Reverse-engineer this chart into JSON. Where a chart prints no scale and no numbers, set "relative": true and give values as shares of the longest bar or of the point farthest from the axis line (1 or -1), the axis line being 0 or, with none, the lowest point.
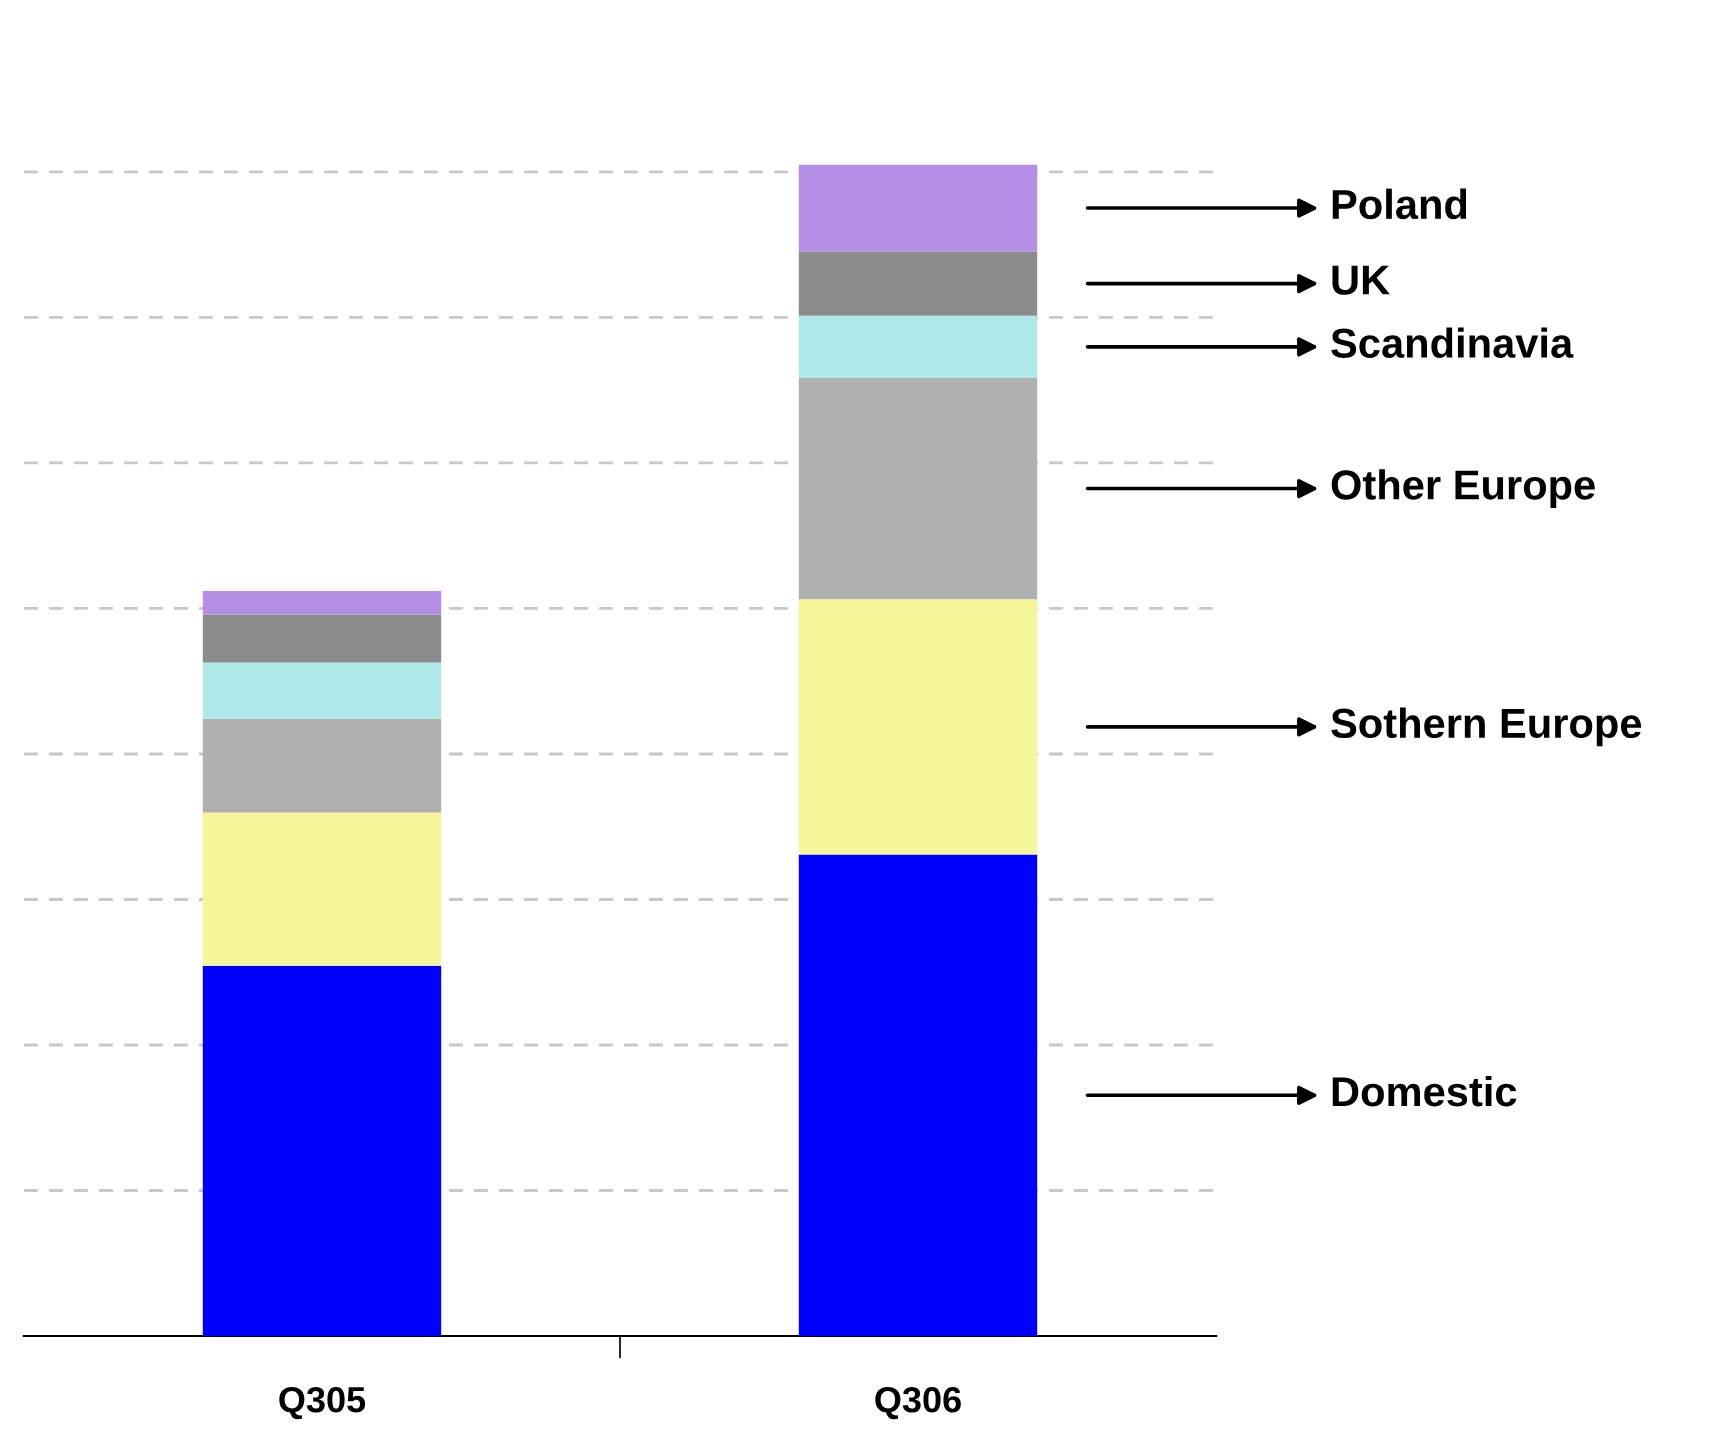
{
  "chart_data": {
    "type": "bar",
    "stacked": true,
    "relative": true,
    "grid": "y",
    "legend": false,
    "categories": [
      "Q305",
      "Q306"
    ],
    "series": [
      {
        "name": "Domestic",
        "color": "#0000ff",
        "values": [
          0.316,
          0.411
        ]
      },
      {
        "name": "Sothern Europe",
        "color": "#f5f59a",
        "values": [
          0.131,
          0.218
        ]
      },
      {
        "name": "Other Europe",
        "color": "#b0b0b0",
        "values": [
          0.08,
          0.189
        ]
      },
      {
        "name": "Scandinavia",
        "color": "#aee8e8",
        "values": [
          0.048,
          0.053
        ]
      },
      {
        "name": "UK",
        "color": "#8c8c8c",
        "values": [
          0.041,
          0.055
        ]
      },
      {
        "name": "Poland",
        "color": "#b58ee6",
        "values": [
          0.02,
          0.074
        ]
      }
    ]
  }
}
